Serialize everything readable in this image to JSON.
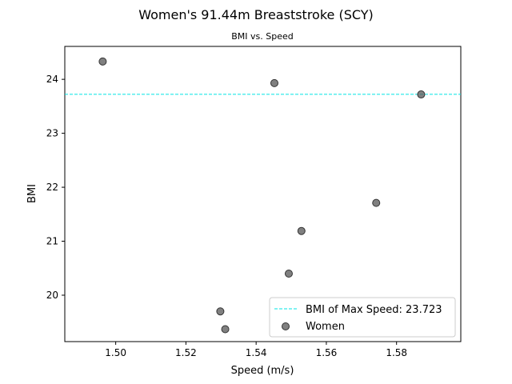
{
  "chart_data": {
    "type": "scatter",
    "title": "Women's 91.44m Breaststroke (SCY)",
    "subtitle": "BMI vs. Speed",
    "xlabel": "Speed (m/s)",
    "ylabel": "BMI",
    "xlim": [
      1.4855,
      1.5983
    ],
    "ylim": [
      19.14,
      24.61
    ],
    "xticks": [
      1.5,
      1.52,
      1.54,
      1.56,
      1.58
    ],
    "xtick_labels": [
      "1.50",
      "1.52",
      "1.54",
      "1.56",
      "1.58"
    ],
    "yticks": [
      20,
      21,
      22,
      23,
      24
    ],
    "ytick_labels": [
      "20",
      "21",
      "22",
      "23",
      "24"
    ],
    "grid": false,
    "legend_position": "lower-right",
    "series": [
      {
        "name": "Women",
        "color": "#555555",
        "points": [
          {
            "x": 1.4963,
            "y": 24.33
          },
          {
            "x": 1.5452,
            "y": 23.93
          },
          {
            "x": 1.587,
            "y": 23.72
          },
          {
            "x": 1.5742,
            "y": 21.71
          },
          {
            "x": 1.5529,
            "y": 21.19
          },
          {
            "x": 1.5493,
            "y": 20.4
          },
          {
            "x": 1.5298,
            "y": 19.7
          },
          {
            "x": 1.5312,
            "y": 19.37
          }
        ]
      }
    ],
    "reference_line": {
      "orientation": "horizontal",
      "y": 23.723,
      "color": "#00e5e5",
      "style": "dashed",
      "label": "BMI of Max Speed: 23.723"
    }
  }
}
